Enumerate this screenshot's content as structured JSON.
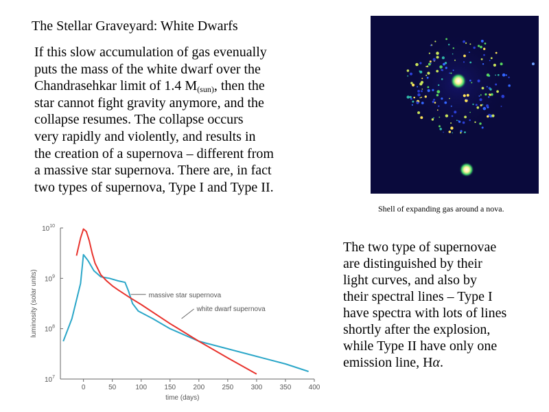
{
  "slide": {
    "title": "The Stellar Graveyard: White Dwarfs",
    "paragraph1_lines": [
      "If this slow accumulation of gas evenually",
      "puts the mass of the white dwarf over the",
      "Chandrasehkar limit of 1.4 M",
      "star cannot fight gravity anymore, and the",
      "collapse resumes.  The collapse occurs",
      "very rapidly and violently, and results in",
      "the creation of a supernova – different from",
      "a massive star supernova.  There are, in fact",
      "two types of supernova, Type I and Type II."
    ],
    "subscript": "(sun)",
    "line3_tail": ", then the",
    "caption": "Shell of expanding gas around a nova.",
    "paragraph2_lines": [
      "The two type of supernovae",
      "are distinguished by their",
      "light curves, and also by",
      "their spectral lines – Type I",
      "have spectra with lots of lines",
      "shortly after the explosion,",
      "while Type II have only one",
      "emission line, H",
      "α",
      "."
    ]
  },
  "chart_data": {
    "type": "line",
    "xlabel": "time (days)",
    "ylabel": "luminosity (solar units)",
    "xlim": [
      -40,
      400
    ],
    "ylim_log10": [
      7,
      10
    ],
    "y_scale": "log",
    "x_ticks": [
      0,
      50,
      100,
      150,
      200,
      250,
      300,
      350,
      400
    ],
    "y_tick_labels": [
      {
        "base": "10",
        "exp": "10",
        "log": 10
      },
      {
        "base": "10",
        "exp": "9",
        "log": 9
      },
      {
        "base": "10",
        "exp": "8",
        "log": 8
      },
      {
        "base": "10",
        "exp": "7",
        "log": 7
      }
    ],
    "grid": false,
    "series": [
      {
        "name": "massive star supernova",
        "color": "#2aa6c8",
        "x": [
          -35,
          -20,
          -5,
          0,
          8,
          18,
          30,
          45,
          60,
          72,
          78,
          85,
          95,
          120,
          150,
          200,
          250,
          300,
          350,
          390
        ],
        "log_y": [
          7.75,
          8.2,
          8.9,
          9.47,
          9.35,
          9.15,
          9.03,
          9.0,
          8.95,
          8.92,
          8.75,
          8.5,
          8.35,
          8.2,
          8.0,
          7.75,
          7.6,
          7.45,
          7.3,
          7.15
        ]
      },
      {
        "name": "white dwarf supernova",
        "color": "#e8322c",
        "x": [
          -12,
          -5,
          0,
          5,
          10,
          15,
          20,
          30,
          40,
          50,
          60,
          80,
          100,
          150,
          200,
          250,
          300
        ],
        "log_y": [
          9.45,
          9.8,
          9.98,
          9.93,
          9.75,
          9.5,
          9.3,
          9.07,
          8.95,
          8.85,
          8.77,
          8.62,
          8.48,
          8.1,
          7.75,
          7.42,
          7.1
        ]
      }
    ]
  },
  "colors": {
    "text": "#000000",
    "image_background": "#0a0a3c"
  }
}
